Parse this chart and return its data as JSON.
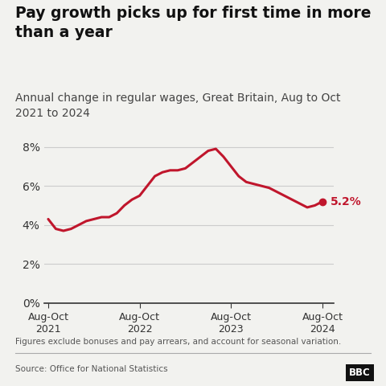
{
  "title": "Pay growth picks up for first time in more\nthan a year",
  "subtitle": "Annual change in regular wages, Great Britain, Aug to Oct\n2021 to 2024",
  "footnote": "Figures exclude bonuses and pay arrears, and account for seasonal variation.",
  "source": "Source: Office for National Statistics",
  "bbc_label": "BBC",
  "line_color": "#c0162c",
  "background_color": "#f2f2ef",
  "title_fontsize": 13.5,
  "subtitle_fontsize": 10,
  "annotation_label": "5.2%",
  "x_tick_labels": [
    "Aug-Oct\n2021",
    "Aug-Oct\n2022",
    "Aug-Oct\n2023",
    "Aug-Oct\n2024"
  ],
  "x_tick_positions": [
    0,
    12,
    24,
    36
  ],
  "ylim": [
    0,
    9
  ],
  "yticks": [
    0,
    2,
    4,
    6,
    8
  ],
  "ytick_labels": [
    "0%",
    "2%",
    "4%",
    "6%",
    "8%"
  ],
  "x_values": [
    0,
    1,
    2,
    3,
    4,
    5,
    6,
    7,
    8,
    9,
    10,
    11,
    12,
    13,
    14,
    15,
    16,
    17,
    18,
    19,
    20,
    21,
    22,
    23,
    24,
    25,
    26,
    27,
    28,
    29,
    30,
    31,
    32,
    33,
    34,
    35,
    36
  ],
  "y_values": [
    4.3,
    3.8,
    3.7,
    3.8,
    4.0,
    4.2,
    4.3,
    4.4,
    4.4,
    4.6,
    5.0,
    5.3,
    5.5,
    6.0,
    6.5,
    6.7,
    6.8,
    6.8,
    6.9,
    7.2,
    7.5,
    7.8,
    7.9,
    7.5,
    7.0,
    6.5,
    6.2,
    6.1,
    6.0,
    5.9,
    5.7,
    5.5,
    5.3,
    5.1,
    4.9,
    5.0,
    5.2
  ]
}
